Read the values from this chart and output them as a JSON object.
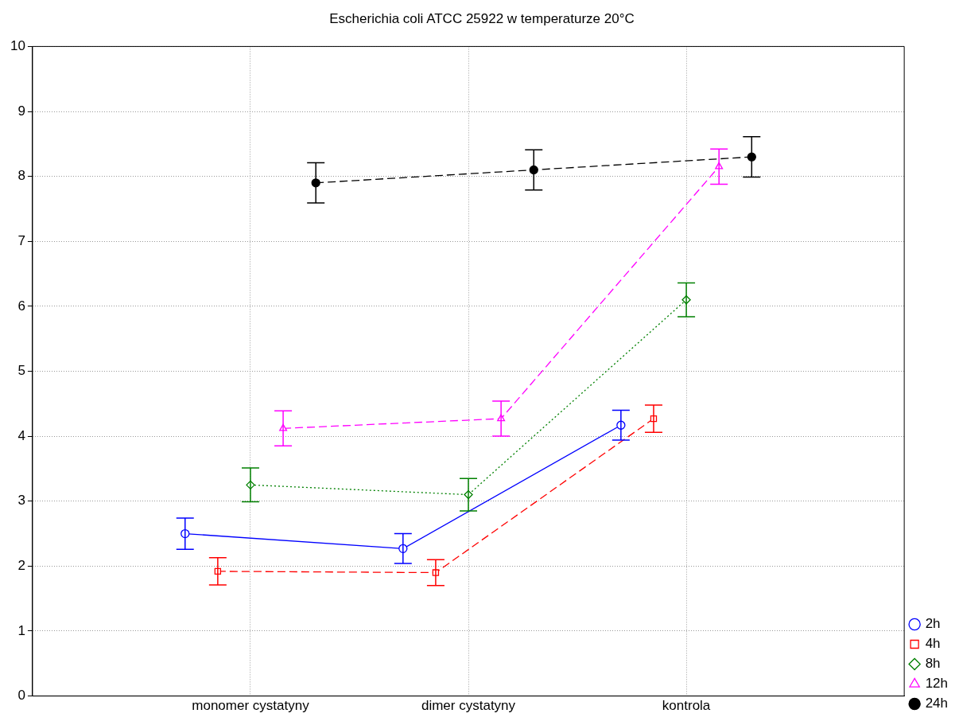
{
  "chart_data": {
    "type": "line",
    "title": "Escherichia coli ATCC 25922 w temperaturze 20°C",
    "categories": [
      "monomer cystatyny",
      "dimer cystatyny",
      "kontrola"
    ],
    "ylim": [
      0,
      10
    ],
    "yticks": [
      0,
      1,
      2,
      3,
      4,
      5,
      6,
      7,
      8,
      9,
      10
    ],
    "grid": true,
    "legend": "bottom right",
    "series": [
      {
        "name": "2h",
        "color": "#0000ff",
        "values": [
          2.5,
          2.27,
          4.17
        ],
        "errors": [
          0.24,
          0.23,
          0.23
        ],
        "marker": "circle",
        "line_style": "solid"
      },
      {
        "name": "4h",
        "color": "#ff0000",
        "values": [
          1.92,
          1.9,
          4.27
        ],
        "errors": [
          0.21,
          0.2,
          0.21
        ],
        "marker": "square",
        "line_style": "dashed"
      },
      {
        "name": "8h",
        "color": "#008000",
        "values": [
          3.25,
          3.1,
          6.1
        ],
        "errors": [
          0.26,
          0.25,
          0.26
        ],
        "marker": "diamond",
        "line_style": "dotted"
      },
      {
        "name": "12h",
        "color": "#ff00ff",
        "values": [
          4.12,
          4.27,
          8.15
        ],
        "errors": [
          0.27,
          0.27,
          0.27
        ],
        "marker": "triangle",
        "line_style": "dashed"
      },
      {
        "name": "24h",
        "color": "#000000",
        "values": [
          7.9,
          8.1,
          8.3
        ],
        "errors": [
          0.31,
          0.31,
          0.31
        ],
        "marker": "circle",
        "line_style": "dashed"
      }
    ]
  }
}
